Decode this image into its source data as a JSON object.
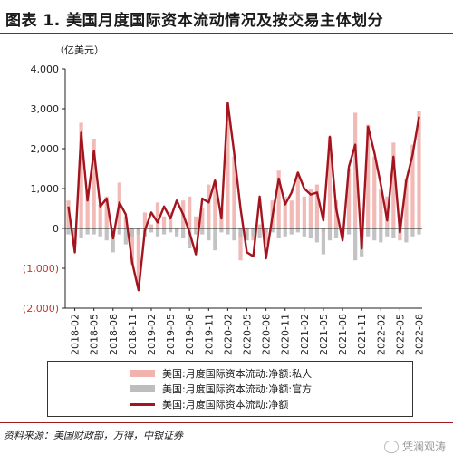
{
  "figure": {
    "title": "图表 1. 美国月度国际资本流动情况及按交易主体划分",
    "unit": "（亿美元）",
    "source": "资料来源：美国财政部，万得，中银证券",
    "watermark": "凭澜观涛"
  },
  "colors": {
    "private": "#f0b3ae",
    "official": "#bdbdbd",
    "net": "#a3141e",
    "negative_tick": "#c0392b"
  },
  "chart_data": {
    "type": "bar",
    "ylabel": "（亿美元）",
    "ylim": [
      -2000,
      4000
    ],
    "y_ticks": [
      4000,
      3000,
      2000,
      1000,
      0,
      -1000,
      -2000
    ],
    "y_tick_labels": [
      "4,000",
      "3,000",
      "2,000",
      "1,000",
      "0",
      "(1,000)",
      "(2,000)"
    ],
    "x_tick_labels": [
      "2018-02",
      "2018-05",
      "2018-08",
      "2018-11",
      "2019-02",
      "2019-05",
      "2019-08",
      "2019-11",
      "2020-02",
      "2020-05",
      "2020-08",
      "2020-11",
      "2021-02",
      "2021-05",
      "2021-08",
      "2021-11",
      "2022-02",
      "2022-05",
      "2022-08"
    ],
    "legend_position": "bottom",
    "grid": false,
    "categories": [
      "2018-01",
      "2018-02",
      "2018-03",
      "2018-04",
      "2018-05",
      "2018-06",
      "2018-07",
      "2018-08",
      "2018-09",
      "2018-10",
      "2018-11",
      "2018-12",
      "2019-01",
      "2019-02",
      "2019-03",
      "2019-04",
      "2019-05",
      "2019-06",
      "2019-07",
      "2019-08",
      "2019-09",
      "2019-10",
      "2019-11",
      "2019-12",
      "2020-01",
      "2020-02",
      "2020-03",
      "2020-04",
      "2020-05",
      "2020-06",
      "2020-07",
      "2020-08",
      "2020-09",
      "2020-10",
      "2020-11",
      "2020-12",
      "2021-01",
      "2021-02",
      "2021-03",
      "2021-04",
      "2021-05",
      "2021-06",
      "2021-07",
      "2021-08",
      "2021-09",
      "2021-10",
      "2021-11",
      "2021-12",
      "2022-01",
      "2022-02",
      "2022-03",
      "2022-04",
      "2022-05",
      "2022-06",
      "2022-07",
      "2022-08"
    ],
    "series": [
      {
        "name": "美国:月度国际资本流动:净额:私人",
        "kind": "bar",
        "values": [
          700,
          -400,
          2650,
          900,
          2250,
          600,
          800,
          -200,
          1150,
          300,
          -900,
          -1400,
          400,
          100,
          650,
          300,
          400,
          -100,
          700,
          800,
          300,
          500,
          1100,
          1200,
          500,
          2900,
          1800,
          -800,
          -300,
          -300,
          100,
          -400,
          700,
          1450,
          800,
          700,
          1400,
          800,
          1000,
          1100,
          -100,
          2300,
          700,
          -100,
          1500,
          2900,
          -200,
          2600,
          1800,
          1000,
          800,
          2150,
          -300,
          1250,
          2100,
          2950
        ]
      },
      {
        "name": "美国:月度国际资本流动:净额:官方",
        "kind": "bar",
        "values": [
          -150,
          -200,
          -250,
          -150,
          -150,
          -200,
          -300,
          -600,
          -150,
          -400,
          -200,
          -150,
          -200,
          -100,
          -200,
          -150,
          -100,
          -200,
          -250,
          -500,
          -150,
          -150,
          -300,
          -550,
          -100,
          -150,
          -300,
          -200,
          -300,
          -200,
          -250,
          -100,
          -100,
          -250,
          -200,
          -150,
          -100,
          -200,
          -250,
          -350,
          -650,
          -300,
          -250,
          -250,
          -150,
          -800,
          -700,
          -200,
          -300,
          -350,
          -200,
          -250,
          -100,
          -350,
          -200,
          -150
        ]
      },
      {
        "name": "美国:月度国际资本流动:净额",
        "kind": "line",
        "values": [
          550,
          -600,
          2400,
          700,
          1950,
          550,
          750,
          -250,
          650,
          350,
          -850,
          -1550,
          -50,
          400,
          150,
          550,
          250,
          700,
          350,
          -100,
          -650,
          750,
          650,
          1200,
          250,
          3150,
          1900,
          500,
          -600,
          -700,
          800,
          -750,
          300,
          1250,
          600,
          900,
          1400,
          1000,
          850,
          900,
          200,
          2300,
          500,
          -300,
          1550,
          2100,
          -500,
          2550,
          1900,
          1100,
          200,
          1800,
          -100,
          1200,
          1850,
          2800
        ]
      }
    ]
  }
}
